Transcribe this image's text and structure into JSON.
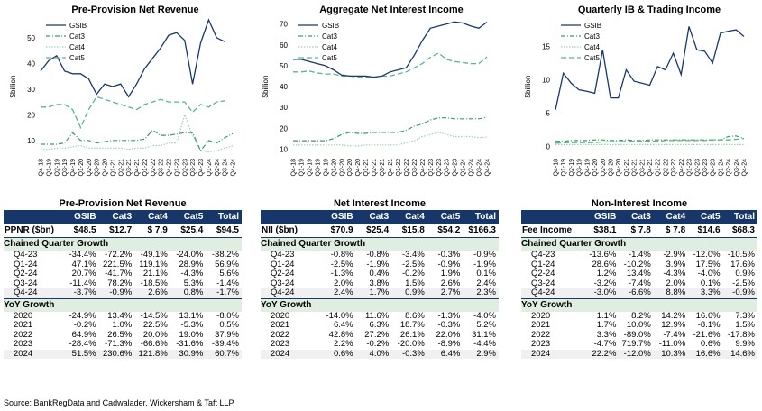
{
  "colors": {
    "navy": "#17376b",
    "green_dark": "#3a9a6a",
    "green_light": "#9fd2b0",
    "green_mid": "#5cb585"
  },
  "chart_data": [
    {
      "type": "line",
      "title": "Pre-Provision Net Revenue",
      "ylabel": "$billion",
      "ylim": [
        5,
        57
      ],
      "yticks": [
        10,
        20,
        30,
        40,
        50
      ],
      "categories": [
        "Q4-18",
        "Q1-19",
        "Q2-19",
        "Q3-19",
        "Q4-19",
        "Q1-20",
        "Q2-20",
        "Q3-20",
        "Q4-20",
        "Q1-21",
        "Q2-21",
        "Q3-21",
        "Q4-21",
        "Q1-22",
        "Q2-22",
        "Q3-22",
        "Q4-22",
        "Q1-23",
        "Q2-23",
        "Q3-23",
        "Q4-23",
        "Q1-24",
        "Q2-24",
        "Q3-24",
        "Q4-24"
      ],
      "series": [
        {
          "name": "GSIB",
          "values": [
            37,
            41,
            43,
            37,
            36,
            36,
            34,
            28,
            32,
            31,
            32,
            27,
            32,
            38,
            42,
            46,
            51,
            52,
            49,
            32,
            48,
            57,
            50,
            48.5,
            null
          ]
        },
        {
          "name": "Cat3",
          "values": [
            8.5,
            8.5,
            8.5,
            9,
            13,
            10,
            10,
            9,
            9.5,
            10,
            10,
            10,
            10,
            10.5,
            14,
            12,
            12,
            12.5,
            13,
            13,
            6,
            10,
            9,
            11,
            12.7
          ]
        },
        {
          "name": "Cat4",
          "values": [
            6.5,
            6.5,
            7,
            7,
            7.5,
            8,
            7,
            7,
            7,
            7,
            7,
            6.5,
            7,
            7,
            8,
            8,
            9,
            9,
            20,
            12,
            6,
            5.5,
            6,
            7,
            7.9
          ]
        },
        {
          "name": "Cat5",
          "values": [
            23,
            23,
            24,
            24,
            22,
            15,
            22,
            27,
            26,
            25,
            24,
            23,
            22,
            24,
            25,
            26,
            25,
            25,
            25,
            21,
            24,
            23,
            25,
            25.4,
            null
          ]
        }
      ],
      "legend": "top-left"
    },
    {
      "type": "line",
      "title": "Aggregate Net Interest Income",
      "ylabel": "$billion",
      "ylim": [
        8,
        72
      ],
      "yticks": [
        10,
        20,
        30,
        40,
        50,
        60,
        70
      ],
      "categories": [
        "Q4-18",
        "Q1-19",
        "Q2-19",
        "Q3-19",
        "Q4-19",
        "Q1-20",
        "Q2-20",
        "Q3-20",
        "Q4-20",
        "Q1-21",
        "Q2-21",
        "Q3-21",
        "Q4-21",
        "Q1-22",
        "Q2-22",
        "Q3-22",
        "Q4-22",
        "Q1-23",
        "Q2-23",
        "Q3-23",
        "Q4-23",
        "Q1-24",
        "Q2-24",
        "Q3-24",
        "Q4-24"
      ],
      "series": [
        {
          "name": "GSIB",
          "values": [
            53,
            53,
            52,
            51,
            50,
            48,
            45.5,
            45,
            45,
            45,
            44.5,
            45,
            47,
            48,
            49,
            55,
            62,
            68,
            69,
            70,
            71,
            70.5,
            69,
            68,
            70.9
          ]
        },
        {
          "name": "Cat3",
          "values": [
            14,
            14,
            14,
            14,
            14,
            15,
            17,
            18,
            17.5,
            17.5,
            18,
            18,
            18,
            18,
            19,
            21,
            22,
            24,
            25,
            25,
            24.5,
            24.5,
            24.5,
            24.5,
            25.4
          ]
        },
        {
          "name": "Cat4",
          "values": [
            12,
            12,
            12,
            12,
            12,
            12,
            12,
            11.5,
            11.5,
            12,
            12,
            12,
            12,
            12,
            13,
            14,
            16,
            17,
            18,
            17,
            16,
            16,
            16,
            15.5,
            15.8
          ]
        },
        {
          "name": "Cat5",
          "values": [
            47,
            47,
            47.5,
            46.5,
            46,
            46,
            45,
            45,
            44.5,
            44.5,
            44.5,
            45,
            45,
            46,
            47,
            49,
            51,
            54,
            56,
            53,
            52,
            51.5,
            51,
            51,
            54.2
          ]
        }
      ],
      "legend": "top-left"
    },
    {
      "type": "line",
      "title": "Quarterly IB & Trading Income",
      "ylabel": "$billion",
      "ylim": [
        -1,
        19
      ],
      "yticks": [
        0,
        5,
        10,
        15
      ],
      "categories": [
        "Q4-18",
        "Q1-19",
        "Q2-19",
        "Q3-19",
        "Q4-19",
        "Q1-20",
        "Q2-20",
        "Q3-20",
        "Q4-20",
        "Q1-21",
        "Q2-21",
        "Q3-21",
        "Q4-21",
        "Q1-22",
        "Q2-22",
        "Q3-22",
        "Q4-22",
        "Q1-23",
        "Q2-23",
        "Q3-23",
        "Q4-23",
        "Q1-24",
        "Q2-24",
        "Q3-24",
        "Q4-24"
      ],
      "series": [
        {
          "name": "GSIB",
          "values": [
            5.5,
            11,
            9.5,
            8.5,
            8.3,
            8,
            14.5,
            7.3,
            7.3,
            11.5,
            9.8,
            9.5,
            9.2,
            12,
            11.5,
            14,
            10.8,
            18,
            14.5,
            14.3,
            12.5,
            17,
            17.3,
            17.5,
            16.5
          ]
        },
        {
          "name": "Cat3",
          "values": [
            0.8,
            0.8,
            0.9,
            0.9,
            0.9,
            1,
            1,
            0.9,
            0.9,
            1,
            0.9,
            0.9,
            1,
            1,
            1,
            1,
            1,
            1,
            1,
            1,
            1,
            1,
            1.5,
            1.6,
            1.2
          ]
        },
        {
          "name": "Cat4",
          "values": [
            0.3,
            0.3,
            0.3,
            0.3,
            0.3,
            0.3,
            0.3,
            0.3,
            0.3,
            0.3,
            0.3,
            0.3,
            0.3,
            0.3,
            0.3,
            0.3,
            0.3,
            0.3,
            0.3,
            0.3,
            0.3,
            0.3,
            0.3,
            0.3,
            0.3
          ]
        },
        {
          "name": "Cat5",
          "values": [
            0.5,
            0.6,
            0.6,
            0.6,
            0.6,
            0.6,
            0.7,
            0.7,
            0.7,
            0.8,
            0.8,
            0.8,
            0.8,
            0.8,
            0.9,
            0.9,
            0.9,
            0.9,
            0.9,
            0.9,
            1,
            1,
            1,
            1.1,
            1.2
          ]
        }
      ],
      "legend": "top-left"
    }
  ],
  "tables": [
    {
      "title": "Pre-Provision Net Revenue",
      "columns": [
        "GSIB",
        "Cat3",
        "Cat4",
        "Cat5",
        "Total"
      ],
      "level_label": "PPNR ($bn)",
      "level": [
        "$48.5",
        "$12.7",
        "$ 7.9",
        "$25.4",
        "$94.5"
      ],
      "qoq_label": "Chained Quarter Growth",
      "qoq": [
        {
          "label": "Q4-23",
          "values": [
            "-34.4%",
            "-72.2%",
            "-49.1%",
            "-24.0%",
            "-38.2%"
          ]
        },
        {
          "label": "Q1-24",
          "values": [
            "47.1%",
            "221.5%",
            "119.1%",
            "28.9%",
            "56.9%"
          ]
        },
        {
          "label": "Q2-24",
          "values": [
            "20.7%",
            "-41.7%",
            "21.1%",
            "-4.3%",
            "5.6%"
          ]
        },
        {
          "label": "Q3-24",
          "values": [
            "-11.4%",
            "78.2%",
            "-18.5%",
            "5.3%",
            "-1.4%"
          ]
        },
        {
          "label": "Q4-24",
          "values": [
            "-3.7%",
            "-0.9%",
            "2.6%",
            "0.8%",
            "-1.7%"
          ]
        }
      ],
      "yoy_label": "YoY Growth",
      "yoy": [
        {
          "label": "2020",
          "values": [
            "-24.9%",
            "13.4%",
            "-14.5%",
            "13.1%",
            "-8.0%"
          ]
        },
        {
          "label": "2021",
          "values": [
            "-0.2%",
            "1.0%",
            "22.5%",
            "-5.3%",
            "0.5%"
          ]
        },
        {
          "label": "2022",
          "values": [
            "64.9%",
            "26.5%",
            "20.0%",
            "19.0%",
            "37.9%"
          ]
        },
        {
          "label": "2023",
          "values": [
            "-28.4%",
            "-71.3%",
            "-66.6%",
            "-31.6%",
            "-39.4%"
          ]
        },
        {
          "label": "2024",
          "values": [
            "51.5%",
            "230.6%",
            "121.8%",
            "30.9%",
            "60.7%"
          ]
        }
      ]
    },
    {
      "title": "Net Interest Income",
      "columns": [
        "GSIB",
        "Cat3",
        "Cat4",
        "Cat5",
        "Total"
      ],
      "level_label": "NII ($bn)",
      "level": [
        "$70.9",
        "$25.4",
        "$15.8",
        "$54.2",
        "$166.3"
      ],
      "qoq_label": "Chained Quarter Growth",
      "qoq": [
        {
          "label": "Q4-23",
          "values": [
            "-0.8%",
            "-0.8%",
            "-3.4%",
            "-0.3%",
            "-0.9%"
          ]
        },
        {
          "label": "Q1-24",
          "values": [
            "-2.5%",
            "-1.9%",
            "-2.5%",
            "-0.9%",
            "-1.9%"
          ]
        },
        {
          "label": "Q2-24",
          "values": [
            "-1.3%",
            "0.4%",
            "-0.2%",
            "1.9%",
            "0.1%"
          ]
        },
        {
          "label": "Q3-24",
          "values": [
            "2.0%",
            "3.8%",
            "1.5%",
            "2.6%",
            "2.4%"
          ]
        },
        {
          "label": "Q4-24",
          "values": [
            "2.4%",
            "1.7%",
            "0.9%",
            "2.7%",
            "2.3%"
          ]
        }
      ],
      "yoy_label": "YoY Growth",
      "yoy": [
        {
          "label": "2020",
          "values": [
            "-14.0%",
            "11.6%",
            "8.6%",
            "-1.3%",
            "-4.0%"
          ]
        },
        {
          "label": "2021",
          "values": [
            "6.4%",
            "6.3%",
            "18.7%",
            "-0.3%",
            "5.2%"
          ]
        },
        {
          "label": "2022",
          "values": [
            "42.8%",
            "27.2%",
            "26.1%",
            "22.0%",
            "31.1%"
          ]
        },
        {
          "label": "2023",
          "values": [
            "2.2%",
            "-0.2%",
            "-20.0%",
            "-8.9%",
            "-4.4%"
          ]
        },
        {
          "label": "2024",
          "values": [
            "0.6%",
            "4.0%",
            "-0.3%",
            "6.4%",
            "2.9%"
          ]
        }
      ]
    },
    {
      "title": "Non-Interest Income",
      "columns": [
        "GSIB",
        "Cat3",
        "Cat4",
        "Cat5",
        "Total"
      ],
      "level_label": "Fee Income",
      "level": [
        "$38.1",
        "$ 7.8",
        "$ 7.8",
        "$14.6",
        "$68.3"
      ],
      "qoq_label": "Chained Quarter Growth",
      "qoq": [
        {
          "label": "Q4-23",
          "values": [
            "-13.6%",
            "-1.4%",
            "-2.9%",
            "-12.0%",
            "-10.5%"
          ]
        },
        {
          "label": "Q1-24",
          "values": [
            "28.6%",
            "-10.2%",
            "3.9%",
            "17.5%",
            "17.6%"
          ]
        },
        {
          "label": "Q2-24",
          "values": [
            "1.2%",
            "13.4%",
            "-4.3%",
            "-4.0%",
            "0.9%"
          ]
        },
        {
          "label": "Q3-24",
          "values": [
            "-3.2%",
            "-7.4%",
            "2.0%",
            "0.1%",
            "-2.5%"
          ]
        },
        {
          "label": "Q4-24",
          "values": [
            "-3.0%",
            "-6.6%",
            "8.8%",
            "3.3%",
            "-0.9%"
          ]
        }
      ],
      "yoy_label": "YoY Growth",
      "yoy": [
        {
          "label": "2020",
          "values": [
            "1.1%",
            "8.2%",
            "14.2%",
            "16.6%",
            "7.3%"
          ]
        },
        {
          "label": "2021",
          "values": [
            "1.7%",
            "10.0%",
            "12.9%",
            "-8.1%",
            "1.5%"
          ]
        },
        {
          "label": "2022",
          "values": [
            "3.3%",
            "-89.0%",
            "-7.4%",
            "-21.6%",
            "-17.8%"
          ]
        },
        {
          "label": "2023",
          "values": [
            "-4.7%",
            "719.7%",
            "-11.0%",
            "0.6%",
            "9.9%"
          ]
        },
        {
          "label": "2024",
          "values": [
            "22.2%",
            "-12.0%",
            "10.3%",
            "16.6%",
            "14.6%"
          ]
        }
      ]
    }
  ],
  "source": "Source: BankRegData and Cadwalader, Wickersham & Taft LLP."
}
